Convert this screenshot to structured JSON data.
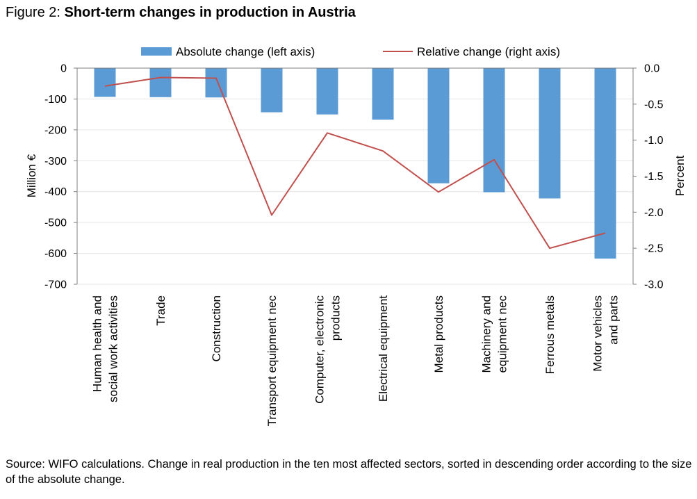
{
  "title": {
    "prefix": "Figure 2: ",
    "text": "Short-term changes in production in Austria"
  },
  "source_note": "Source: WIFO calculations. Change in real production in the ten most affected sectors, sorted in descending order according to the size of the absolute change.",
  "chart_data": {
    "type": "bar",
    "combo": "bar+line",
    "categories": [
      [
        "Human health and",
        "social work activities"
      ],
      [
        "Trade"
      ],
      [
        "Construction"
      ],
      [
        "Transport equipment nec"
      ],
      [
        "Computer, electronic",
        "products"
      ],
      [
        "Electrical equipment"
      ],
      [
        "Metal products"
      ],
      [
        "Machinery and",
        "equipment nec"
      ],
      [
        "Ferrous metals"
      ],
      [
        "Motor vehicles",
        "and parts"
      ]
    ],
    "series": [
      {
        "name": "Absolute change (left axis)",
        "type": "bar",
        "axis": "left",
        "color": "#5B9BD5",
        "values": [
          -93,
          -94,
          -95,
          -143,
          -150,
          -167,
          -373,
          -402,
          -422,
          -617
        ]
      },
      {
        "name": "Relative change (right axis)",
        "type": "line",
        "axis": "right",
        "color": "#C0504D",
        "values": [
          -0.25,
          -0.13,
          -0.14,
          -2.04,
          -0.9,
          -1.15,
          -1.72,
          -1.27,
          -2.5,
          -2.29
        ]
      }
    ],
    "ylabel": "Million €",
    "ylim": [
      -700,
      0
    ],
    "yticks": [
      "0",
      "-100",
      "-200",
      "-300",
      "-400",
      "-500",
      "-600",
      "-700"
    ],
    "y2label": "Percent",
    "y2lim": [
      -3.0,
      0.0
    ],
    "y2ticks": [
      "0.0",
      "-0.5",
      "-1.0",
      "-1.5",
      "-2.0",
      "-2.5",
      "-3.0"
    ],
    "grid": true,
    "legend": "top-center"
  }
}
